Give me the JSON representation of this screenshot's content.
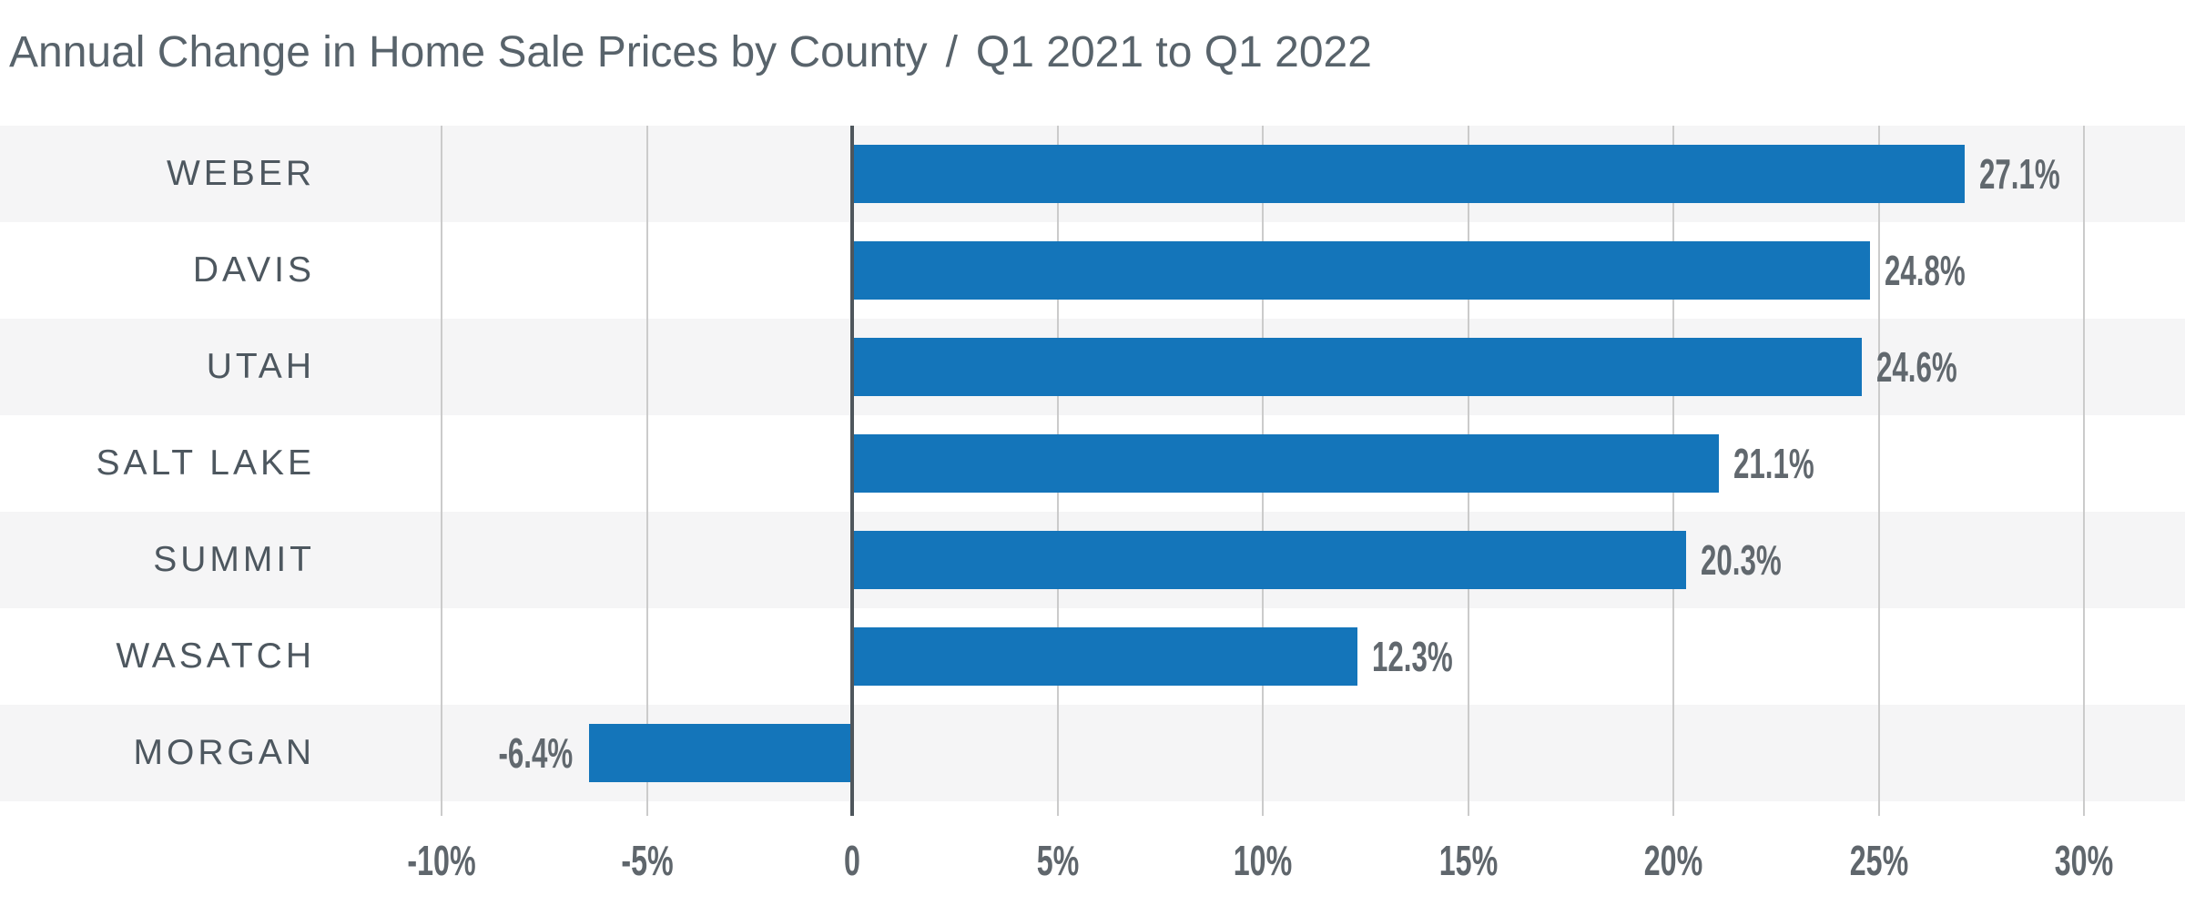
{
  "header": {
    "title": "Annual Change in Home Sale Prices by County",
    "separator": "/",
    "subtitle": "Q1 2021 to Q1 2022"
  },
  "chart_data": {
    "type": "bar",
    "orientation": "horizontal",
    "title": "Annual Change in Home Sale Prices by County / Q1 2021 to Q1 2022",
    "xlabel": "",
    "ylabel": "",
    "categories": [
      "WEBER",
      "DAVIS",
      "UTAH",
      "SALT LAKE",
      "SUMMIT",
      "WASATCH",
      "MORGAN"
    ],
    "values": [
      27.1,
      24.8,
      24.6,
      21.1,
      20.3,
      12.3,
      -6.4
    ],
    "value_labels": [
      "27.1%",
      "24.8%",
      "24.6%",
      "21.1%",
      "20.3%",
      "12.3%",
      "-6.4%"
    ],
    "x_ticks": [
      {
        "label": "-10%",
        "value": -10
      },
      {
        "label": "-5%",
        "value": -5
      },
      {
        "label": "0",
        "value": 0
      },
      {
        "label": "5%",
        "value": 5
      },
      {
        "label": "10%",
        "value": 10
      },
      {
        "label": "15%",
        "value": 15
      },
      {
        "label": "20%",
        "value": 20
      },
      {
        "label": "25%",
        "value": 25
      },
      {
        "label": "30%",
        "value": 30
      }
    ],
    "xlim": [
      -10,
      30
    ],
    "grid": true,
    "legend": false,
    "colors": {
      "bar": "#1475ba",
      "row_band": "#f5f5f6",
      "row_band_alt": "#ffffff",
      "gridline": "#cbcbcb",
      "zero_line": "#4e565c",
      "title_text": "#58636b",
      "category_text": "#4d575f",
      "value_text": "#61686e",
      "tick_text": "#5f666c"
    }
  }
}
